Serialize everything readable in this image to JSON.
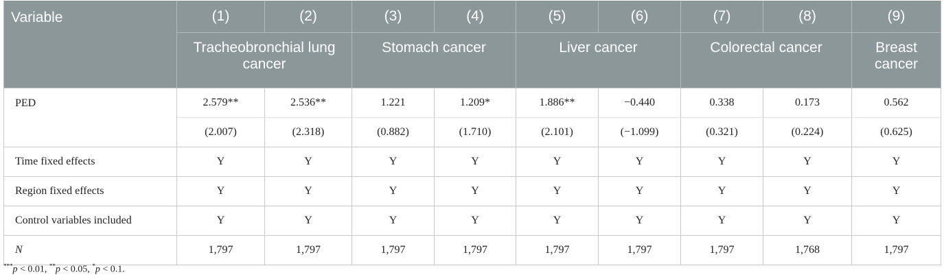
{
  "header": {
    "variable": "Variable",
    "columns": [
      "(1)",
      "(2)",
      "(3)",
      "(4)",
      "(5)",
      "(6)",
      "(7)",
      "(8)",
      "(9)"
    ],
    "groups": [
      {
        "label": "Tracheobronchial lung cancer",
        "span": 2
      },
      {
        "label": "Stomach cancer",
        "span": 2
      },
      {
        "label": "Liver cancer",
        "span": 2
      },
      {
        "label": "Colorectal cancer",
        "span": 2
      },
      {
        "label": "Breast cancer",
        "span": 1
      }
    ]
  },
  "ped": {
    "label": "PED",
    "coefficients": [
      "2.579**",
      "2.536**",
      "1.221",
      "1.209*",
      "1.886**",
      "−0.440",
      "0.338",
      "0.173",
      "0.562"
    ],
    "t_stats": [
      "(2.007)",
      "(2.318)",
      "(0.882)",
      "(1.710)",
      "(2.101)",
      "(−1.099)",
      "(0.321)",
      "(0.224)",
      "(0.625)"
    ]
  },
  "rows": [
    {
      "label": "Time fixed effects",
      "values": [
        "Y",
        "Y",
        "Y",
        "Y",
        "Y",
        "Y",
        "Y",
        "Y",
        "Y"
      ]
    },
    {
      "label": "Region fixed effects",
      "values": [
        "Y",
        "Y",
        "Y",
        "Y",
        "Y",
        "Y",
        "Y",
        "Y",
        "Y"
      ]
    },
    {
      "label": "Control variables included",
      "values": [
        "Y",
        "Y",
        "Y",
        "Y",
        "Y",
        "Y",
        "Y",
        "Y",
        "Y"
      ]
    },
    {
      "label": "N",
      "italic": true,
      "values": [
        "1,797",
        "1,797",
        "1,797",
        "1,797",
        "1,797",
        "1,797",
        "1,797",
        "1,768",
        "1,797"
      ]
    }
  ],
  "footnote": [
    {
      "mark": "***",
      "var": "p",
      "cond": "< 0.01,"
    },
    {
      "mark": "**",
      "var": "p",
      "cond": "< 0.05,"
    },
    {
      "mark": "*",
      "var": "p",
      "cond": "< 0.1."
    }
  ]
}
